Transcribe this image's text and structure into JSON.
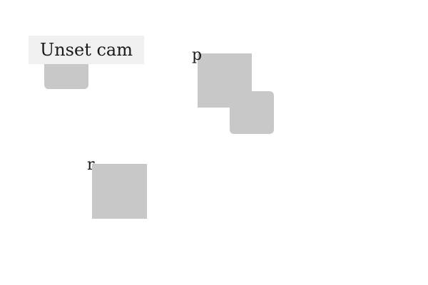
{
  "toolbar": {
    "unset_cam_label": "Unset cam"
  },
  "nodes": {
    "p_label": "p",
    "r_label": "r"
  }
}
